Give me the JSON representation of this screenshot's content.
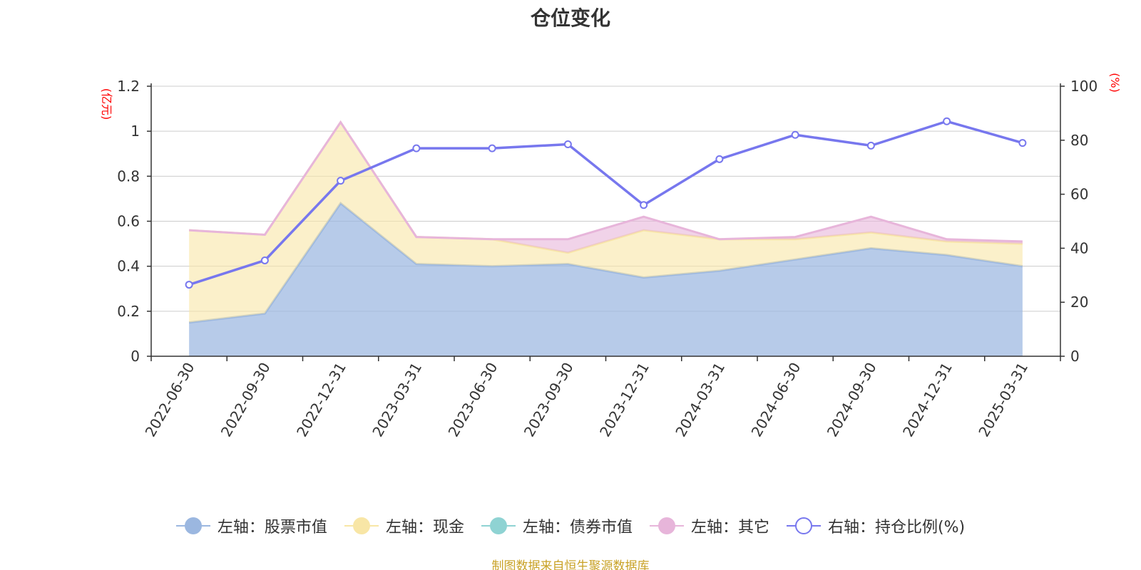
{
  "title": "仓位变化",
  "source_note": "制图数据来自恒生聚源数据库",
  "chart_data": {
    "type": "area",
    "categories": [
      "2022-06-30",
      "2022-09-30",
      "2022-12-31",
      "2023-03-31",
      "2023-06-30",
      "2023-09-30",
      "2023-12-31",
      "2024-03-31",
      "2024-06-30",
      "2024-09-30",
      "2024-12-31",
      "2025-03-31"
    ],
    "left_axis": {
      "unit": "(亿元)",
      "ylim": [
        0,
        1.2
      ],
      "ticks": [
        "0",
        "0.2",
        "0.4",
        "0.6",
        "0.8",
        "1",
        "1.2"
      ]
    },
    "right_axis": {
      "unit": "(%)",
      "ylim": [
        0,
        100
      ],
      "ticks": [
        "0",
        "20",
        "40",
        "60",
        "80",
        "100"
      ]
    },
    "stacked": true,
    "grid": true,
    "legend_position": "bottom",
    "series": [
      {
        "name": "左轴：股票市值",
        "axis": "left",
        "kind": "area",
        "color": "#9bb7e0",
        "values": [
          0.15,
          0.19,
          0.68,
          0.41,
          0.4,
          0.41,
          0.35,
          0.38,
          0.43,
          0.48,
          0.45,
          0.4
        ]
      },
      {
        "name": "左轴：现金",
        "axis": "left",
        "kind": "area",
        "color": "#f8e6a6",
        "values": [
          0.41,
          0.35,
          0.36,
          0.12,
          0.12,
          0.05,
          0.21,
          0.14,
          0.09,
          0.07,
          0.06,
          0.1
        ]
      },
      {
        "name": "左轴：债券市值",
        "axis": "left",
        "kind": "area",
        "color": "#8fd3d3",
        "values": [
          0,
          0,
          0,
          0,
          0,
          0,
          0,
          0,
          0,
          0,
          0,
          0
        ]
      },
      {
        "name": "左轴：其它",
        "axis": "left",
        "kind": "area",
        "color": "#e7b5da",
        "values": [
          0.0,
          0.0,
          0.0,
          0.0,
          0.0,
          0.06,
          0.06,
          0.0,
          0.01,
          0.07,
          0.01,
          0.01
        ]
      },
      {
        "name": "右轴：持仓比例(%)",
        "axis": "right",
        "kind": "line",
        "color": "#7777ee",
        "values": [
          26.5,
          35.5,
          65.0,
          77.0,
          77.0,
          78.5,
          56.0,
          73.0,
          82.0,
          78.0,
          87.0,
          79.0
        ]
      }
    ]
  }
}
